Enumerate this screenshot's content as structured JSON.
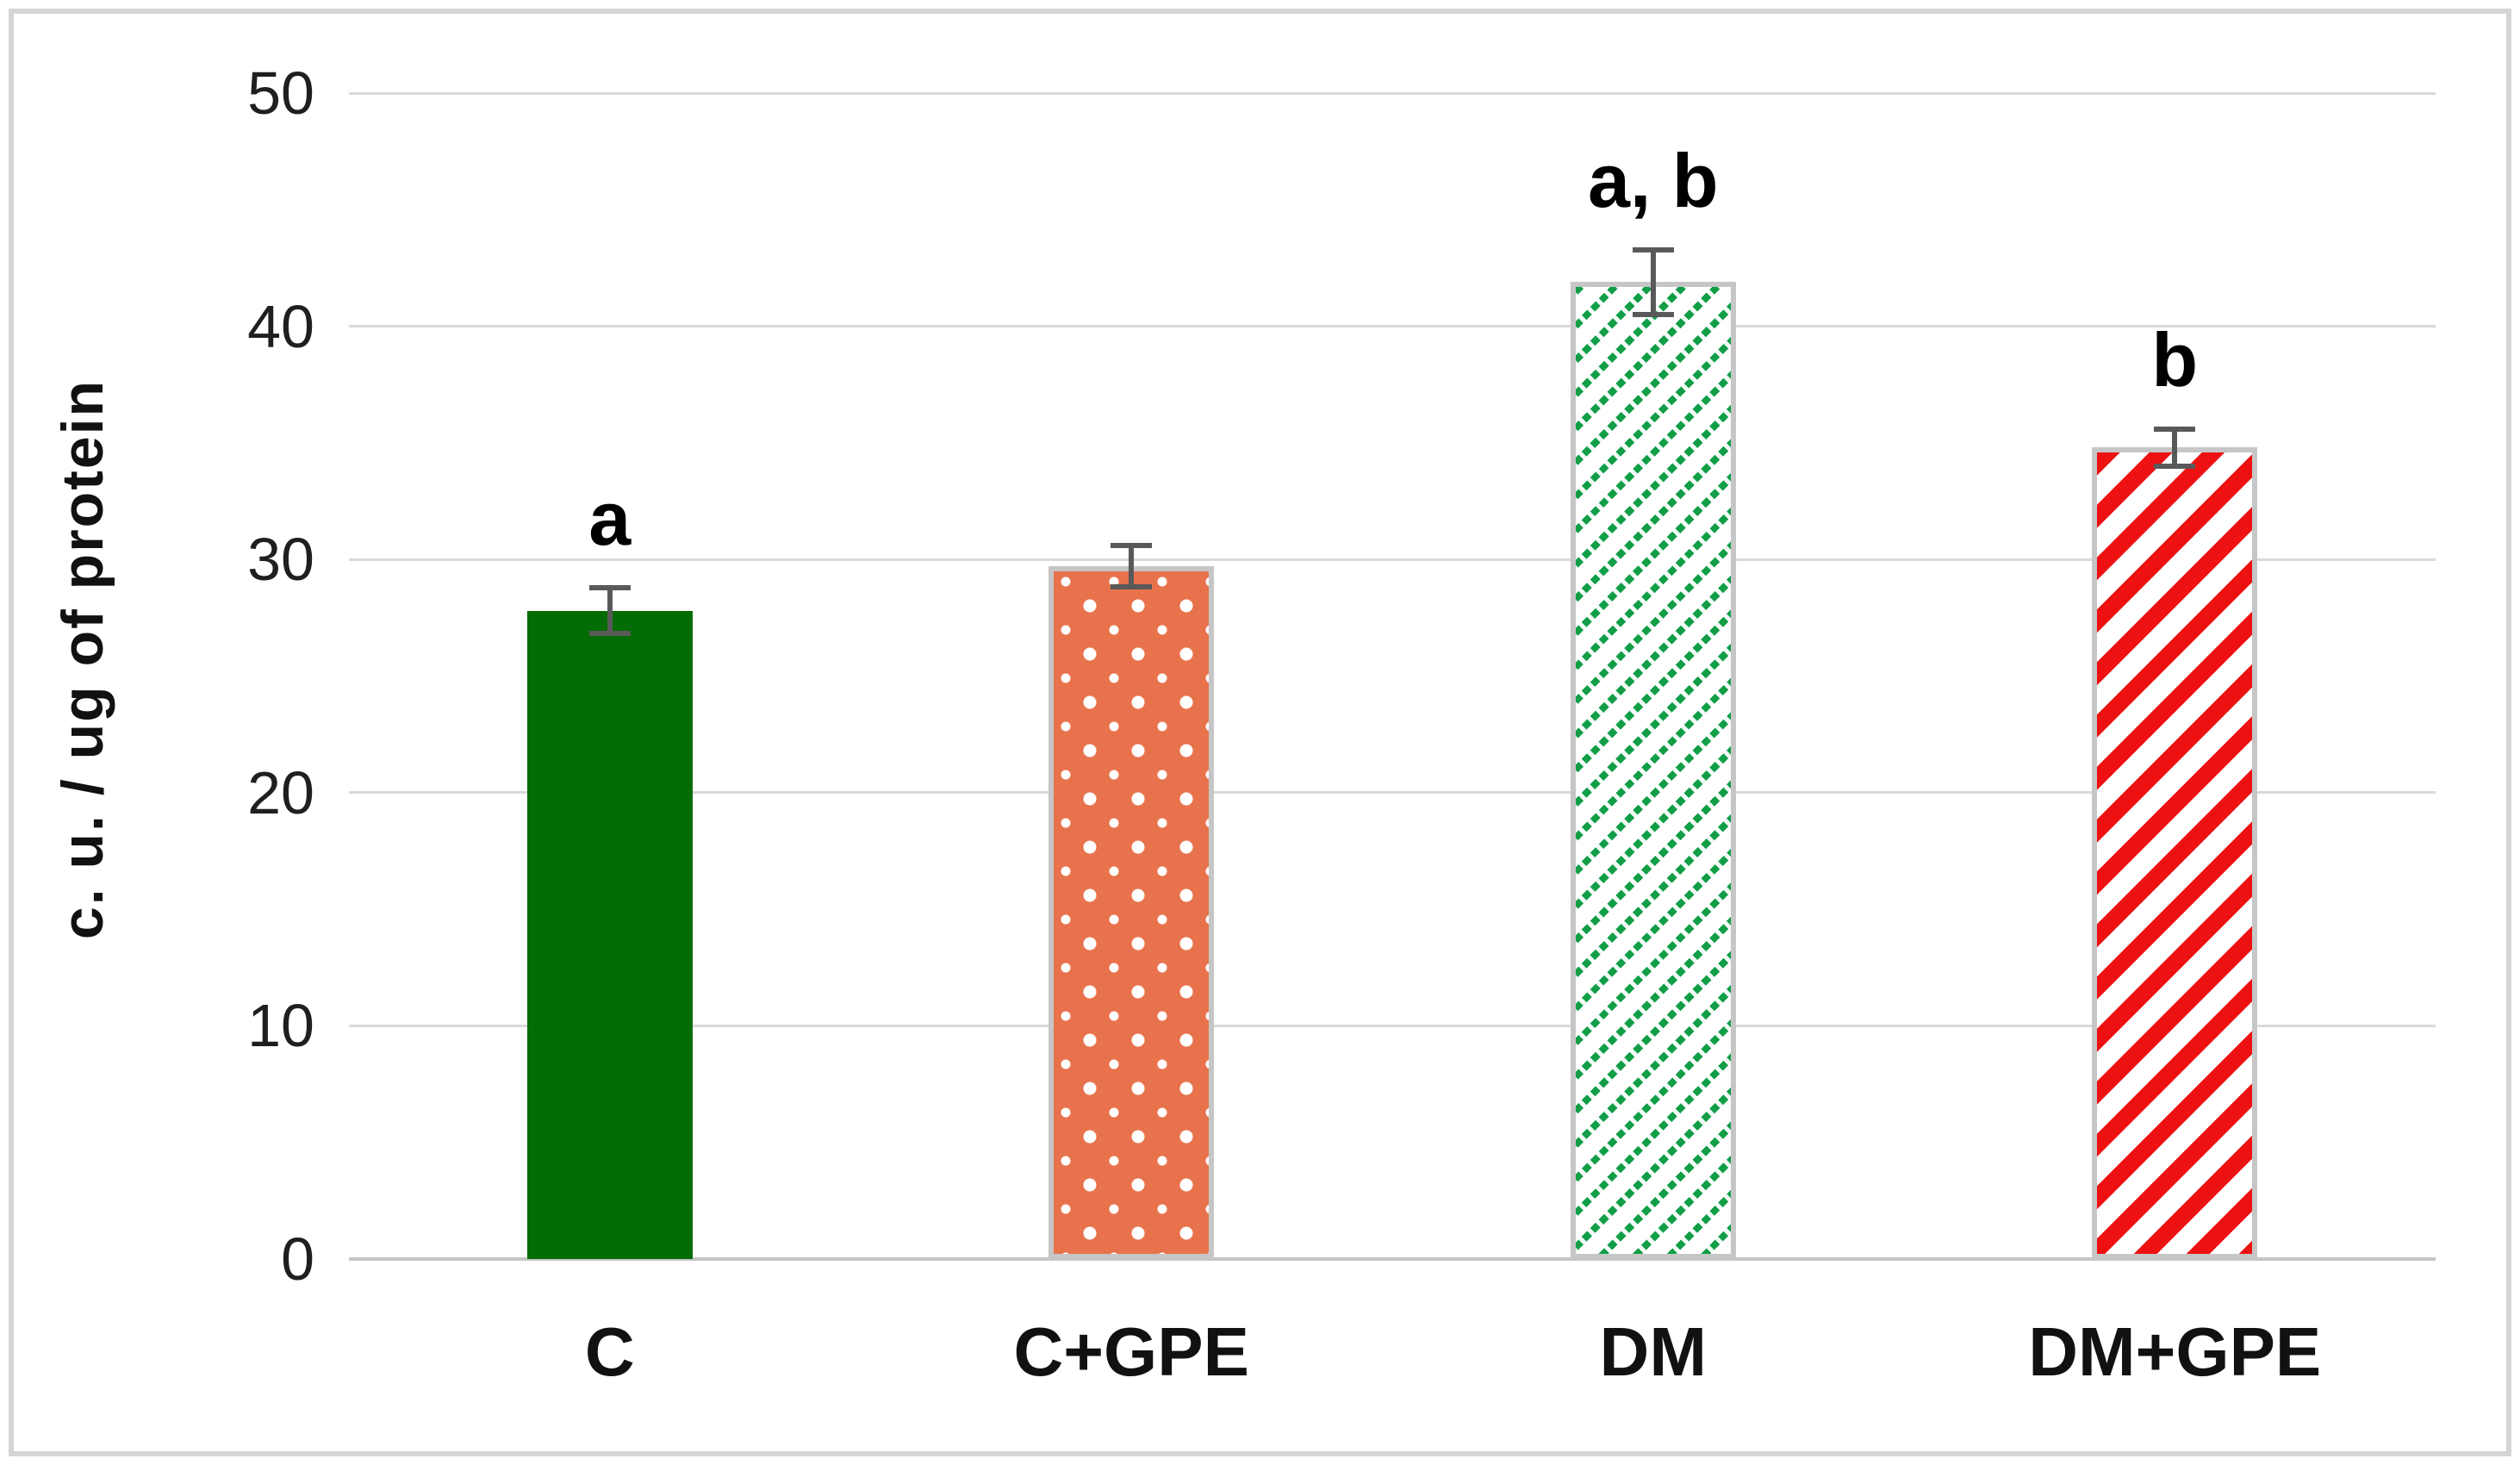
{
  "figure": {
    "background": "#FFFFFF",
    "border_color": "#D5D5D5"
  },
  "chart_data": {
    "type": "bar",
    "title": "",
    "xlabel": "",
    "ylabel": "c. u. / ug of protein",
    "ylim": [
      0,
      50
    ],
    "yticks": [
      0,
      10,
      20,
      30,
      40,
      50
    ],
    "grid": true,
    "legend": "none",
    "categories": [
      "C",
      "C+GPE",
      "DM",
      "DM+GPE"
    ],
    "values": [
      27.8,
      29.7,
      41.9,
      34.8
    ],
    "errors": [
      1.1,
      1.0,
      1.5,
      0.9
    ],
    "sig_labels": [
      "a",
      "",
      "a, b",
      "b"
    ],
    "bar_styles": [
      {
        "name": "solid-dark-green",
        "fill": "#046C04",
        "pattern": "solid",
        "pattern_color": "",
        "border": ""
      },
      {
        "name": "orange-white-dots",
        "fill": "#E8724C",
        "pattern": "polka-dots",
        "pattern_color": "#FFFFFF",
        "border": "#C6C6C6"
      },
      {
        "name": "white-green-dashed-hatch",
        "fill": "#FFFFFF",
        "pattern": "dashed-diagonal",
        "pattern_color": "#119E47",
        "border": "#C6C6C6"
      },
      {
        "name": "white-red-stripes",
        "fill": "#FFFFFF",
        "pattern": "diagonal-stripes",
        "pattern_color": "#EE1111",
        "border": "#C6C6C6"
      }
    ],
    "gridline_color": "#D9D9D9",
    "axis_line_color": "#C6C6C6",
    "error_bar_color": "#595959",
    "text_color": "#1F1F1F"
  }
}
